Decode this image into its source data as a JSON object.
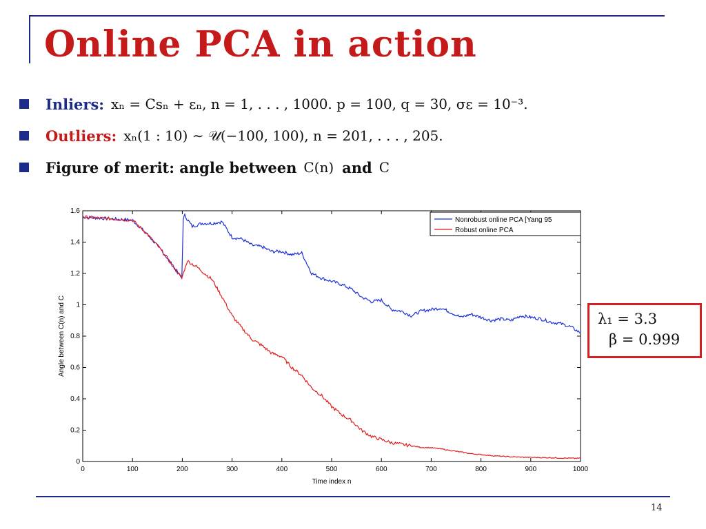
{
  "slide": {
    "title": "Online PCA in action",
    "page_number": "14",
    "bullets": [
      {
        "label": "Inliers:",
        "text": "xₙ = Csₙ + εₙ,    n = 1, . . . , 1000.    p = 100, q = 30, σε = 10⁻³."
      },
      {
        "label": "Outliers:",
        "text": "xₙ(1 : 10) ∼ 𝒰(−100, 100),    n = 201, . . . , 205."
      },
      {
        "label": "Figure of merit: angle between",
        "text_mid": "C(n)",
        "text_and": "and",
        "text_end": "C"
      }
    ],
    "params_box": {
      "line1": "λ₁ = 3.3",
      "line2": "β = 0.999"
    },
    "colors": {
      "title": "#c41a1a",
      "accent": "#1c2b8a",
      "box_border": "#d42020"
    }
  },
  "chart_data": {
    "type": "line",
    "xlabel": "Time index n",
    "ylabel": "Angle between C(n) and C",
    "xlim": [
      0,
      1000
    ],
    "ylim": [
      0,
      1.6
    ],
    "x_ticks": [
      "0",
      "100",
      "200",
      "300",
      "400",
      "500",
      "600",
      "700",
      "800",
      "900",
      "1000"
    ],
    "y_ticks": [
      "0",
      "0.2",
      "0.4",
      "0.6",
      "0.8",
      "1",
      "1.2",
      "1.4",
      "1.6"
    ],
    "grid": false,
    "legend_position": "top-right",
    "series": [
      {
        "name": "Nonrobust online PCA [Yang 95",
        "color": "#1a2fd6",
        "x": [
          0,
          50,
          100,
          130,
          160,
          199,
          202,
          205,
          220,
          240,
          260,
          280,
          300,
          320,
          340,
          360,
          380,
          400,
          420,
          440,
          460,
          480,
          500,
          520,
          540,
          560,
          580,
          600,
          620,
          640,
          660,
          680,
          700,
          720,
          740,
          760,
          780,
          800,
          820,
          840,
          860,
          880,
          900,
          920,
          940,
          960,
          980,
          1000
        ],
        "y": [
          1.56,
          1.55,
          1.54,
          1.45,
          1.34,
          1.17,
          1.55,
          1.57,
          1.5,
          1.52,
          1.52,
          1.53,
          1.43,
          1.42,
          1.38,
          1.37,
          1.34,
          1.34,
          1.32,
          1.33,
          1.2,
          1.17,
          1.15,
          1.13,
          1.1,
          1.05,
          1.02,
          1.03,
          0.97,
          0.96,
          0.93,
          0.96,
          0.97,
          0.98,
          0.95,
          0.92,
          0.94,
          0.92,
          0.9,
          0.91,
          0.9,
          0.93,
          0.92,
          0.91,
          0.89,
          0.88,
          0.86,
          0.82
        ]
      },
      {
        "name": "Robust online PCA",
        "color": "#e01c1c",
        "x": [
          0,
          50,
          100,
          130,
          160,
          199,
          210,
          230,
          260,
          280,
          300,
          320,
          340,
          360,
          380,
          400,
          420,
          440,
          460,
          480,
          500,
          520,
          540,
          560,
          580,
          600,
          620,
          640,
          660,
          680,
          700,
          720,
          740,
          760,
          780,
          800,
          820,
          840,
          860,
          880,
          900,
          920,
          940,
          960,
          980,
          1000
        ],
        "y": [
          1.56,
          1.55,
          1.54,
          1.45,
          1.34,
          1.17,
          1.28,
          1.24,
          1.16,
          1.05,
          0.93,
          0.85,
          0.78,
          0.74,
          0.69,
          0.67,
          0.6,
          0.55,
          0.47,
          0.42,
          0.35,
          0.3,
          0.26,
          0.2,
          0.16,
          0.14,
          0.12,
          0.11,
          0.1,
          0.09,
          0.088,
          0.08,
          0.07,
          0.06,
          0.05,
          0.044,
          0.038,
          0.033,
          0.03,
          0.028,
          0.026,
          0.025,
          0.024,
          0.022,
          0.021,
          0.02
        ]
      }
    ]
  }
}
